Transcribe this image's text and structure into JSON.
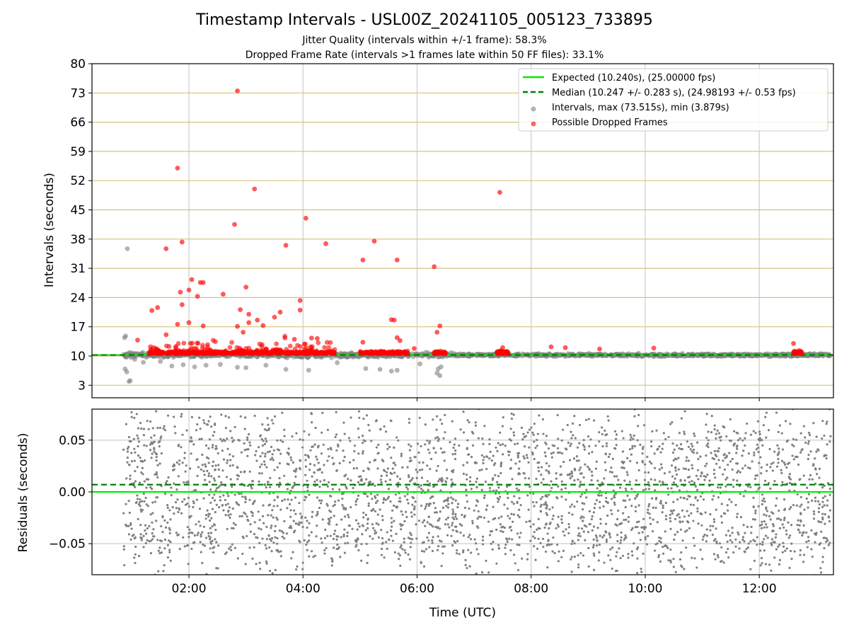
{
  "figure": {
    "title": "Timestamp Intervals - USL00Z_20241105_005123_733895",
    "subtitle_1": "Jitter Quality (intervals within +/-1 frame): 58.3%",
    "subtitle_2": "Dropped Frame Rate (intervals >1 frames late within 50 FF files): 33.1%"
  },
  "colors": {
    "expected_line": "#00ee00",
    "median_line": "#008000",
    "intervals_points": "#808080",
    "dropped_points": "#ff0000",
    "main_grid_horizontal": "#d4c47c",
    "grid": "#cccccc"
  },
  "chart_data": [
    {
      "type": "scatter",
      "panel": "intervals",
      "xlabel": "",
      "ylabel": "Intervals (seconds)",
      "x_unit": "time_utc_hours",
      "xlim": [
        0.3,
        13.3
      ],
      "ylim": [
        0,
        80
      ],
      "yticks": [
        3,
        10,
        17,
        24,
        31,
        38,
        45,
        52,
        59,
        66,
        73,
        80
      ],
      "grid": true,
      "legend_position": "top-right",
      "legend": [
        {
          "key": "expected",
          "label": "Expected (10.240s), (25.00000 fps)",
          "marker": "solid-line",
          "color": "#00ee00"
        },
        {
          "key": "median",
          "label": "Median (10.247 +/- 0.283 s), (24.98193 +/- 0.53 fps)",
          "marker": "dashed-line",
          "color": "#008000"
        },
        {
          "key": "intervals",
          "label": "Intervals, max (73.515s), min (3.879s)",
          "marker": "dot",
          "color": "#808080"
        },
        {
          "key": "dropped",
          "label": "Possible Dropped Frames",
          "marker": "dot",
          "color": "#ff0000"
        }
      ],
      "reference_lines": {
        "expected": 10.24,
        "median": 10.247
      },
      "intervals_range": [
        0.85,
        13.25
      ],
      "intervals_typical": 10.24,
      "intervals_outliers": [
        [
          0.87,
          14.4
        ],
        [
          0.89,
          14.8
        ],
        [
          0.92,
          35.7
        ],
        [
          0.91,
          6.2
        ],
        [
          0.88,
          6.9
        ],
        [
          0.95,
          3.9
        ],
        [
          0.97,
          4.1
        ],
        [
          1.05,
          9.2
        ],
        [
          1.2,
          8.5
        ],
        [
          1.5,
          8.7
        ],
        [
          1.7,
          7.6
        ],
        [
          1.9,
          7.9
        ],
        [
          2.1,
          7.4
        ],
        [
          2.3,
          7.8
        ],
        [
          2.55,
          8.0
        ],
        [
          2.85,
          7.3
        ],
        [
          3.0,
          7.2
        ],
        [
          3.35,
          7.8
        ],
        [
          3.7,
          6.8
        ],
        [
          4.1,
          6.6
        ],
        [
          4.6,
          8.4
        ],
        [
          5.1,
          7.0
        ],
        [
          5.35,
          6.8
        ],
        [
          5.55,
          6.4
        ],
        [
          5.65,
          6.6
        ],
        [
          6.05,
          8.1
        ],
        [
          6.35,
          5.9
        ],
        [
          6.4,
          5.3
        ],
        [
          6.37,
          6.9
        ],
        [
          6.42,
          7.4
        ]
      ],
      "dropped_band_segments": [
        [
          1.3,
          4.55
        ],
        [
          5.0,
          5.85
        ],
        [
          6.3,
          6.5
        ],
        [
          7.4,
          7.6
        ],
        [
          12.6,
          12.75
        ]
      ],
      "dropped_frames": [
        [
          2.85,
          73.5
        ],
        [
          1.8,
          55.0
        ],
        [
          3.15,
          50.0
        ],
        [
          7.45,
          49.2
        ],
        [
          4.05,
          43.0
        ],
        [
          2.8,
          41.5
        ],
        [
          1.88,
          37.3
        ],
        [
          4.4,
          36.9
        ],
        [
          3.7,
          36.5
        ],
        [
          1.6,
          35.7
        ],
        [
          5.25,
          37.5
        ],
        [
          5.65,
          33.0
        ],
        [
          5.05,
          33.0
        ],
        [
          6.3,
          31.4
        ],
        [
          2.05,
          28.3
        ],
        [
          2.2,
          27.6
        ],
        [
          2.25,
          27.6
        ],
        [
          3.0,
          26.5
        ],
        [
          2.0,
          25.8
        ],
        [
          1.85,
          25.3
        ],
        [
          2.6,
          24.8
        ],
        [
          2.15,
          24.3
        ],
        [
          3.95,
          23.3
        ],
        [
          1.88,
          22.3
        ],
        [
          1.45,
          21.6
        ],
        [
          1.35,
          20.9
        ],
        [
          2.9,
          21.1
        ],
        [
          3.95,
          21.0
        ],
        [
          3.05,
          20.0
        ],
        [
          3.6,
          20.5
        ],
        [
          3.5,
          19.3
        ],
        [
          3.2,
          18.6
        ],
        [
          3.05,
          18.0
        ],
        [
          2.0,
          18.0
        ],
        [
          1.8,
          17.6
        ],
        [
          2.25,
          17.2
        ],
        [
          3.3,
          17.3
        ],
        [
          2.85,
          17.1
        ],
        [
          5.55,
          18.7
        ],
        [
          5.6,
          18.6
        ],
        [
          6.4,
          17.2
        ],
        [
          6.35,
          15.7
        ],
        [
          1.6,
          15.1
        ],
        [
          2.95,
          15.7
        ],
        [
          3.85,
          14.0
        ],
        [
          4.15,
          14.3
        ],
        [
          4.25,
          14.2
        ],
        [
          5.65,
          14.4
        ],
        [
          5.7,
          13.7
        ],
        [
          5.05,
          13.3
        ],
        [
          1.1,
          13.8
        ],
        [
          12.6,
          13.0
        ],
        [
          8.35,
          12.2
        ],
        [
          8.6,
          12.0
        ],
        [
          9.2,
          11.7
        ],
        [
          10.15,
          11.9
        ],
        [
          7.5,
          12.0
        ],
        [
          5.95,
          11.8
        ]
      ],
      "points_total": 3600
    },
    {
      "type": "scatter",
      "panel": "residuals",
      "xlabel": "Time (UTC)",
      "ylabel": "Residuals (seconds)",
      "x_unit": "time_utc_hours",
      "xlim": [
        0.3,
        13.3
      ],
      "ylim": [
        -0.08,
        0.08
      ],
      "xticks": [
        2,
        4,
        6,
        8,
        10,
        12
      ],
      "xtick_labels": [
        "02:00",
        "04:00",
        "06:00",
        "08:00",
        "10:00",
        "12:00"
      ],
      "yticks": [
        -0.05,
        0.0,
        0.05
      ],
      "ytick_labels": [
        "−0.05",
        "0.00",
        "0.05"
      ],
      "grid": true,
      "reference_lines": {
        "expected": 0.0,
        "median": 0.007
      },
      "residual_spread": 0.085,
      "points_total": 2900
    }
  ]
}
